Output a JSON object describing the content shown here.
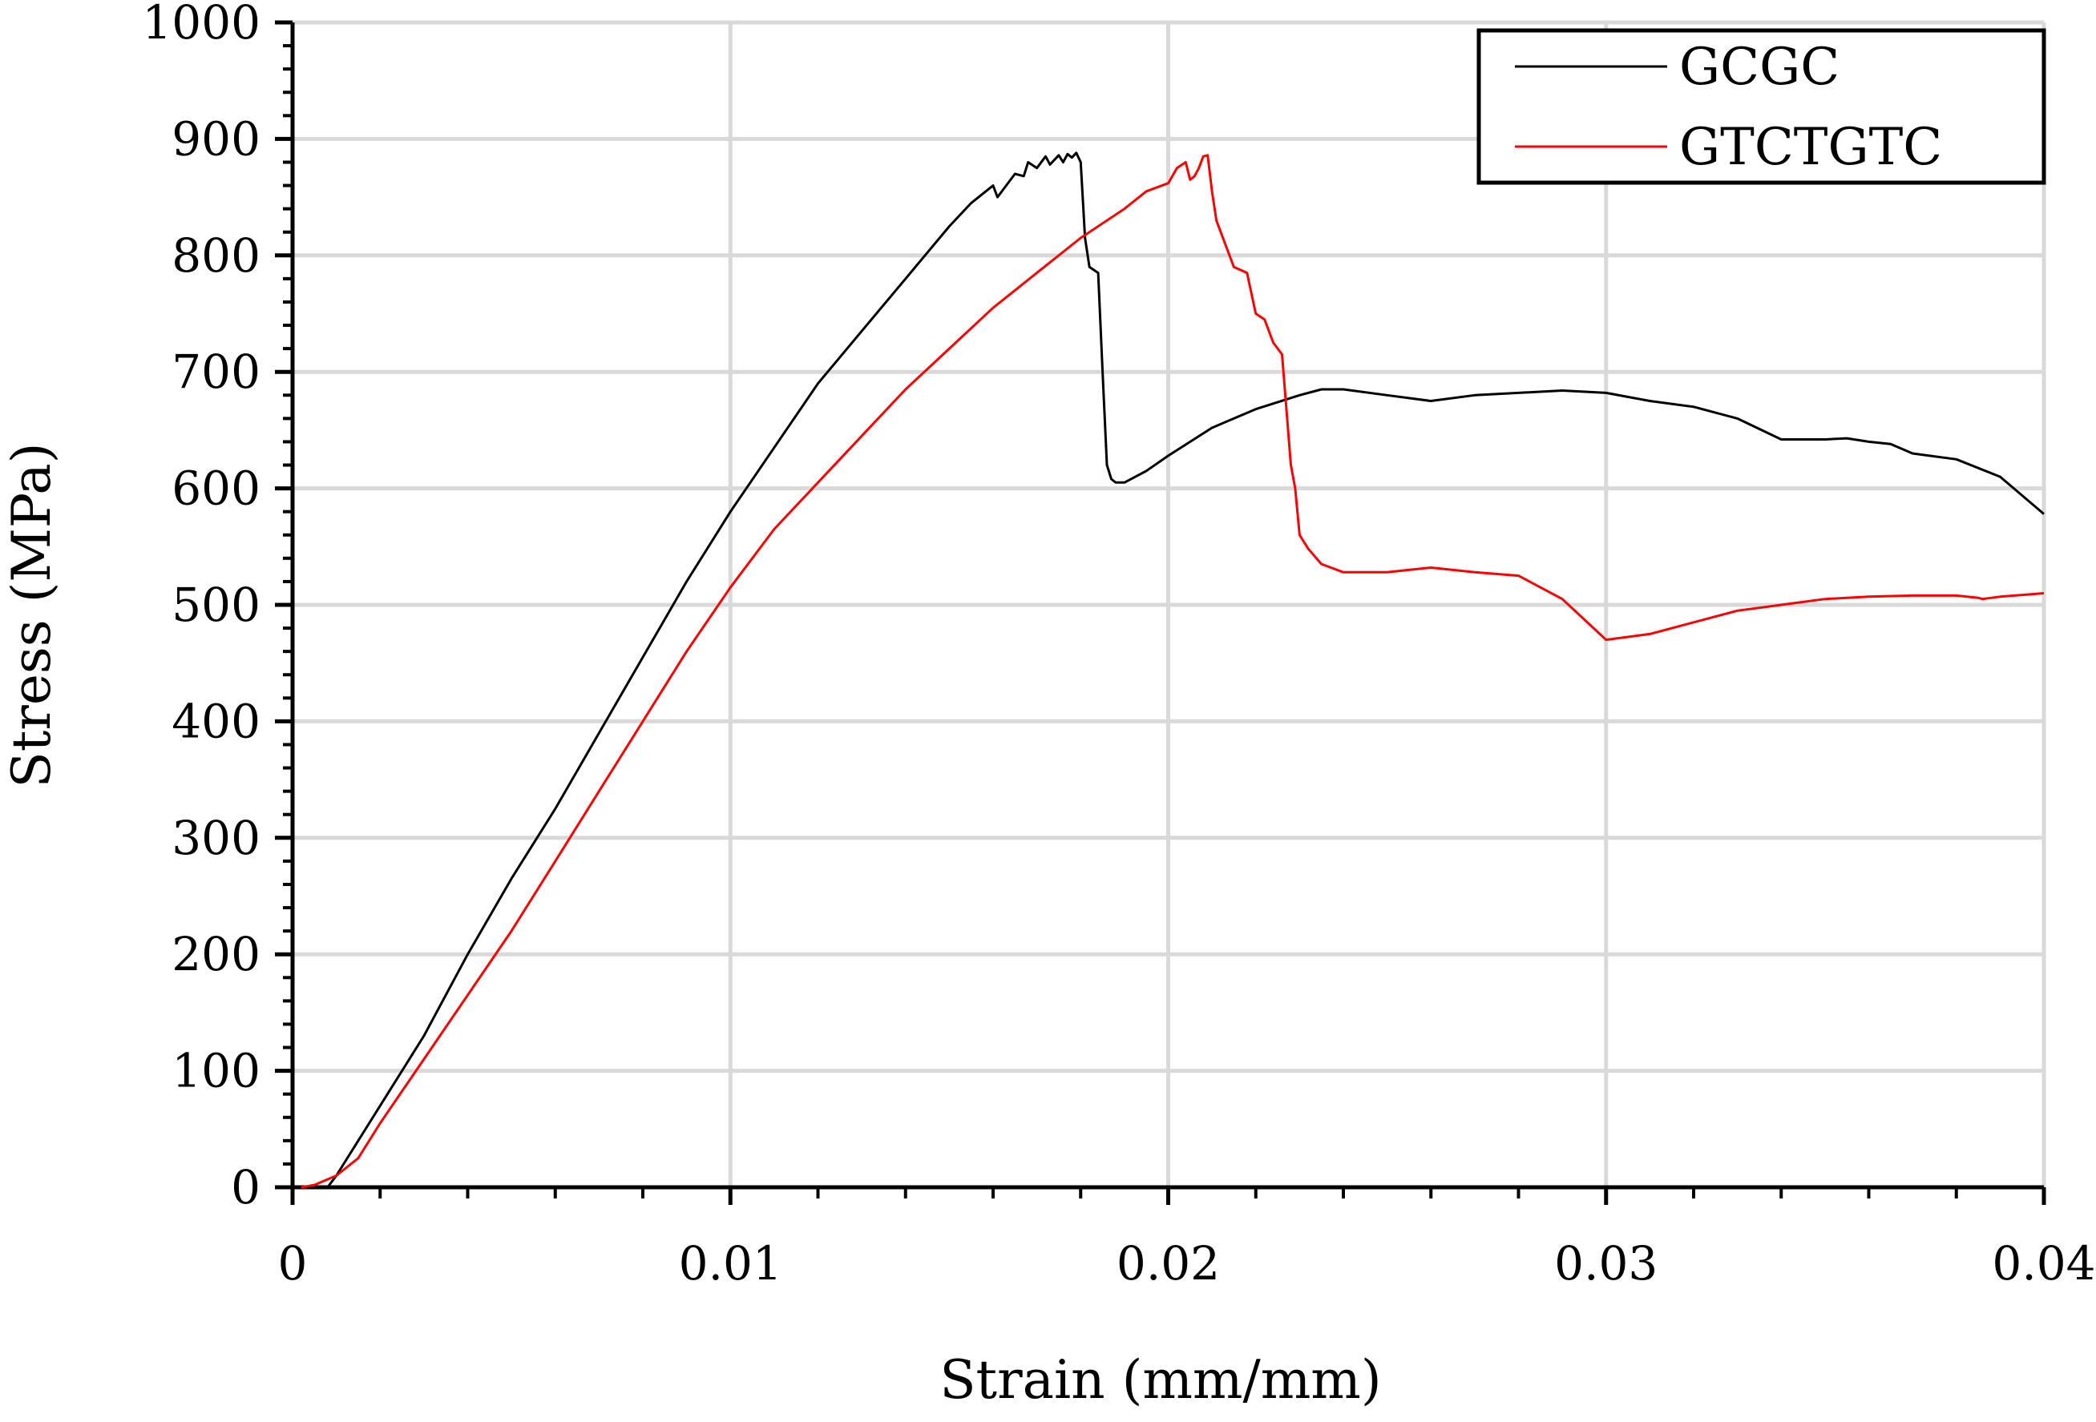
{
  "chart_data": {
    "type": "line",
    "title": "",
    "xlabel": "Strain (mm/mm)",
    "ylabel": "Stress (MPa)",
    "xlim": [
      0,
      0.04
    ],
    "ylim": [
      0,
      1000
    ],
    "x_ticks": [
      "0",
      "0.01",
      "0.02",
      "0.03",
      "0.04"
    ],
    "y_ticks": [
      "0",
      "100",
      "200",
      "300",
      "400",
      "500",
      "600",
      "700",
      "800",
      "900",
      "1000"
    ],
    "grid": true,
    "legend_position": "top-right",
    "series": [
      {
        "name": "GCGC",
        "color": "#000000",
        "x": [
          0.0003,
          0.0008,
          0.001,
          0.002,
          0.003,
          0.004,
          0.005,
          0.006,
          0.007,
          0.008,
          0.009,
          0.01,
          0.011,
          0.012,
          0.013,
          0.014,
          0.015,
          0.0155,
          0.016,
          0.0161,
          0.0165,
          0.0167,
          0.0168,
          0.017,
          0.0172,
          0.0173,
          0.0175,
          0.0176,
          0.0177,
          0.0178,
          0.0179,
          0.018,
          0.0181,
          0.0182,
          0.0184,
          0.0185,
          0.0186,
          0.0187,
          0.0188,
          0.019,
          0.0195,
          0.02,
          0.021,
          0.022,
          0.023,
          0.0235,
          0.024,
          0.025,
          0.026,
          0.027,
          0.028,
          0.029,
          0.03,
          0.031,
          0.032,
          0.033,
          0.034,
          0.035,
          0.0355,
          0.036,
          0.0365,
          0.037,
          0.038,
          0.039,
          0.04
        ],
        "y": [
          0,
          0,
          10,
          70,
          130,
          200,
          265,
          325,
          390,
          455,
          520,
          580,
          635,
          690,
          735,
          780,
          825,
          845,
          860,
          850,
          870,
          868,
          880,
          875,
          885,
          878,
          886,
          880,
          887,
          884,
          888,
          880,
          815,
          790,
          785,
          700,
          620,
          608,
          605,
          605,
          615,
          628,
          652,
          668,
          680,
          685,
          685,
          680,
          675,
          680,
          682,
          684,
          682,
          675,
          670,
          660,
          642,
          642,
          643,
          640,
          638,
          630,
          625,
          610,
          578
        ]
      },
      {
        "name": "GTCTGTC",
        "color": "#ff0000",
        "x": [
          0.0002,
          0.0005,
          0.001,
          0.0015,
          0.002,
          0.003,
          0.004,
          0.005,
          0.006,
          0.007,
          0.008,
          0.009,
          0.01,
          0.011,
          0.012,
          0.013,
          0.014,
          0.015,
          0.016,
          0.017,
          0.018,
          0.019,
          0.0195,
          0.02,
          0.0202,
          0.0204,
          0.0205,
          0.0206,
          0.0207,
          0.0208,
          0.0209,
          0.021,
          0.0211,
          0.0212,
          0.0215,
          0.0218,
          0.022,
          0.0222,
          0.0224,
          0.0225,
          0.0226,
          0.0228,
          0.0229,
          0.023,
          0.0232,
          0.0235,
          0.024,
          0.025,
          0.026,
          0.0265,
          0.027,
          0.028,
          0.029,
          0.03,
          0.031,
          0.032,
          0.033,
          0.034,
          0.035,
          0.036,
          0.037,
          0.038,
          0.0385,
          0.0386,
          0.039,
          0.04
        ],
        "y": [
          0,
          2,
          10,
          25,
          55,
          110,
          165,
          220,
          280,
          340,
          400,
          460,
          515,
          565,
          605,
          645,
          685,
          720,
          755,
          785,
          815,
          840,
          855,
          862,
          875,
          880,
          865,
          868,
          875,
          885,
          886,
          855,
          830,
          820,
          790,
          785,
          750,
          745,
          725,
          720,
          715,
          620,
          600,
          560,
          548,
          535,
          528,
          528,
          532,
          530,
          528,
          525,
          505,
          470,
          475,
          485,
          495,
          500,
          505,
          507,
          508,
          508,
          506,
          505,
          507,
          510
        ]
      }
    ]
  }
}
